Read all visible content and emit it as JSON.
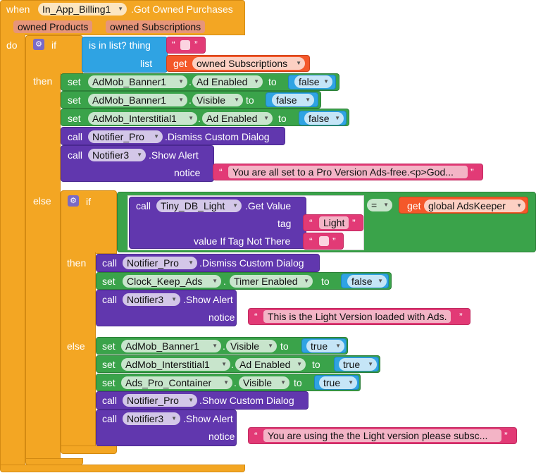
{
  "event": {
    "when": "when",
    "component": "In_App_Billing1",
    "event_name": ".Got Owned Purchases",
    "params": [
      "owned Products",
      "owned Subscriptions"
    ],
    "do": "do"
  },
  "outer_if": {
    "if": "if",
    "then": "then",
    "else": "else",
    "condition": {
      "label": "is in list? thing",
      "list_label": "list",
      "thing_value": "",
      "get_label": "get",
      "get_var": "owned Subscriptions"
    },
    "then_blocks": [
      {
        "kw": "set",
        "component": "AdMob_Banner1",
        "dot": ".",
        "property": "Ad Enabled",
        "to": "to",
        "value": "false"
      },
      {
        "kw": "set",
        "component": "AdMob_Banner1",
        "dot": ".",
        "property": "Visible",
        "to": "to",
        "value": "false"
      },
      {
        "kw": "set",
        "component": "AdMob_Interstitial1",
        "dot": ".",
        "property": "Ad Enabled",
        "to": "to",
        "value": "false"
      },
      {
        "kw": "call",
        "component": "Notifier_Pro",
        "method": ".Dismiss Custom Dialog"
      },
      {
        "kw": "call",
        "component": "Notifier3",
        "method": ".Show Alert",
        "arg_label": "notice",
        "arg_value": "You are all set to a Pro Version Ads-free.<p>God..."
      }
    ]
  },
  "inner_if": {
    "if": "if",
    "then": "then",
    "else": "else",
    "compare": {
      "call": "call",
      "component": "Tiny_DB_Light",
      "method": ".Get Value",
      "tag_label": "tag",
      "tag_value": "Light",
      "default_label": "value If Tag Not There",
      "default_value": "",
      "operator": "=",
      "get_label": "get",
      "get_var": "global AdsKeeper"
    },
    "then_blocks": [
      {
        "kw": "call",
        "component": "Notifier_Pro",
        "method": ".Dismiss Custom Dialog"
      },
      {
        "kw": "set",
        "component": "Clock_Keep_Ads",
        "dot": ".",
        "property": "Timer Enabled",
        "to": "to",
        "value": "false"
      },
      {
        "kw": "call",
        "component": "Notifier3",
        "method": ".Show Alert",
        "arg_label": "notice",
        "arg_value": "This is the Light Version loaded with Ads."
      }
    ],
    "else_blocks": [
      {
        "kw": "set",
        "component": "AdMob_Banner1",
        "dot": ".",
        "property": "Visible",
        "to": "to",
        "value": "true"
      },
      {
        "kw": "set",
        "component": "AdMob_Interstitial1",
        "dot": ".",
        "property": "Ad Enabled",
        "to": "to",
        "value": "true"
      },
      {
        "kw": "set",
        "component": "Ads_Pro_Container",
        "dot": ".",
        "property": "Visible",
        "to": "to",
        "value": "true"
      },
      {
        "kw": "call",
        "component": "Notifier_Pro",
        "method": ".Show Custom Dialog"
      },
      {
        "kw": "call",
        "component": "Notifier3",
        "method": ".Show Alert",
        "arg_label": "notice",
        "arg_value": "You are using the the Light version please subsc..."
      }
    ]
  },
  "icons": {
    "mutator": "gear-icon",
    "dropdown": "chevron-down-icon"
  },
  "colors": {
    "event": "#f3a623",
    "control": "#f3a623",
    "logic": "#2fa3e3",
    "setter": "#3aa34a",
    "method": "#6137ae",
    "text": "#e23a76",
    "variable": "#f4582a"
  }
}
